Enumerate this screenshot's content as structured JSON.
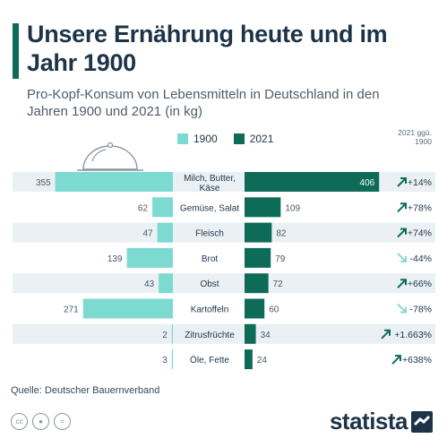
{
  "title": "Unsere Ernährung heute und im Jahr 1900",
  "subtitle": "Pro-Kopf-Konsum von Lebensmitteln in Deutschland in den Jahren 1900 und 2021 (in kg)",
  "change_header": "2021 ggü. 1900",
  "source": "Quelle: Deutscher Bauernverband",
  "logo": "statista",
  "license_icons": [
    "cc-icon",
    "person-icon",
    "equals-icon"
  ],
  "colors": {
    "s1900": "#7ddad1",
    "s2021": "#0e6b58",
    "row_band": "#eaf0f4",
    "up_arrow": "#0e6b58",
    "down_arrow": "#8fd6cf"
  },
  "chart_data": {
    "type": "bar",
    "orientation": "horizontal-butterfly",
    "categories": [
      "Milch, Butter, Käse",
      "Gemüse, Salat",
      "Fleisch",
      "Brot",
      "Obst",
      "Kartoffeln",
      "Zitrusfrüchte",
      "Öle, Fette"
    ],
    "series": [
      {
        "name": "1900",
        "values": [
          355,
          62,
          47,
          139,
          43,
          271,
          2,
          3
        ]
      },
      {
        "name": "2021",
        "values": [
          406,
          109,
          82,
          79,
          72,
          60,
          34,
          24
        ]
      }
    ],
    "change_labels": [
      "+14%",
      "+78%",
      "+74%",
      "-44%",
      "+66%",
      "-78%",
      "+1.663%",
      "+638%"
    ],
    "change_direction": [
      "up",
      "up",
      "up",
      "down",
      "up",
      "down",
      "up",
      "up"
    ]
  }
}
